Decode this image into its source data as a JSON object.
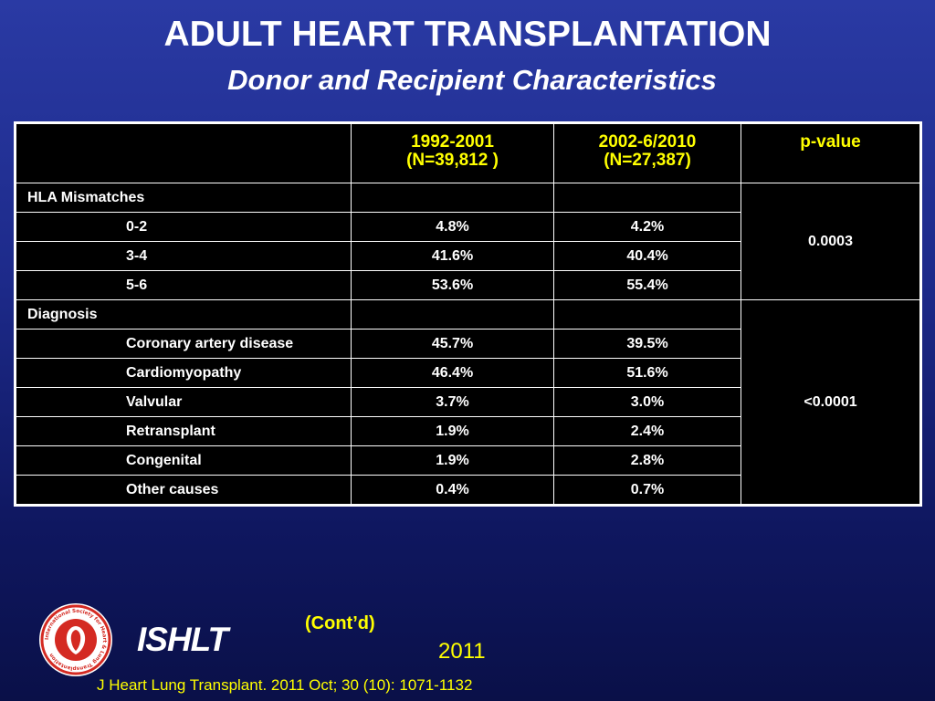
{
  "slide": {
    "title": "ADULT HEART TRANSPLANTATION",
    "subtitle": "Donor and Recipient Characteristics"
  },
  "table": {
    "headers": [
      {
        "line1": "",
        "line2": ""
      },
      {
        "line1": "1992-2001",
        "line2": "(N=39,812 )"
      },
      {
        "line1": "2002-6/2010",
        "line2": "(N=27,387)"
      },
      {
        "line1": "p-value",
        "line2": ""
      }
    ],
    "groups": [
      {
        "label": "HLA Mismatches",
        "p_value": "0.0003",
        "rows": [
          {
            "label": "0-2",
            "v1": "4.8%",
            "v2": "4.2%"
          },
          {
            "label": "3-4",
            "v1": "41.6%",
            "v2": "40.4%"
          },
          {
            "label": "5-6",
            "v1": "53.6%",
            "v2": "55.4%"
          }
        ]
      },
      {
        "label": "Diagnosis",
        "p_value": "<0.0001",
        "rows": [
          {
            "label": "Coronary artery disease",
            "v1": "45.7%",
            "v2": "39.5%"
          },
          {
            "label": "Cardiomyopathy",
            "v1": "46.4%",
            "v2": "51.6%"
          },
          {
            "label": "Valvular",
            "v1": "3.7%",
            "v2": "3.0%"
          },
          {
            "label": "Retransplant",
            "v1": "1.9%",
            "v2": "2.4%"
          },
          {
            "label": "Congenital",
            "v1": "1.9%",
            "v2": "2.8%"
          },
          {
            "label": "Other causes",
            "v1": "0.4%",
            "v2": "0.7%"
          }
        ]
      }
    ]
  },
  "footer": {
    "logo_text": "International Society for Heart & Lung Transplantation",
    "brand": "ISHLT",
    "contd": "(Cont’d)",
    "year": "2011",
    "citation": "J Heart Lung Transplant. 2011 Oct; 30 (10): 1071-1132"
  },
  "colors": {
    "accent": "#ffff00",
    "logo_red": "#d42a22"
  }
}
